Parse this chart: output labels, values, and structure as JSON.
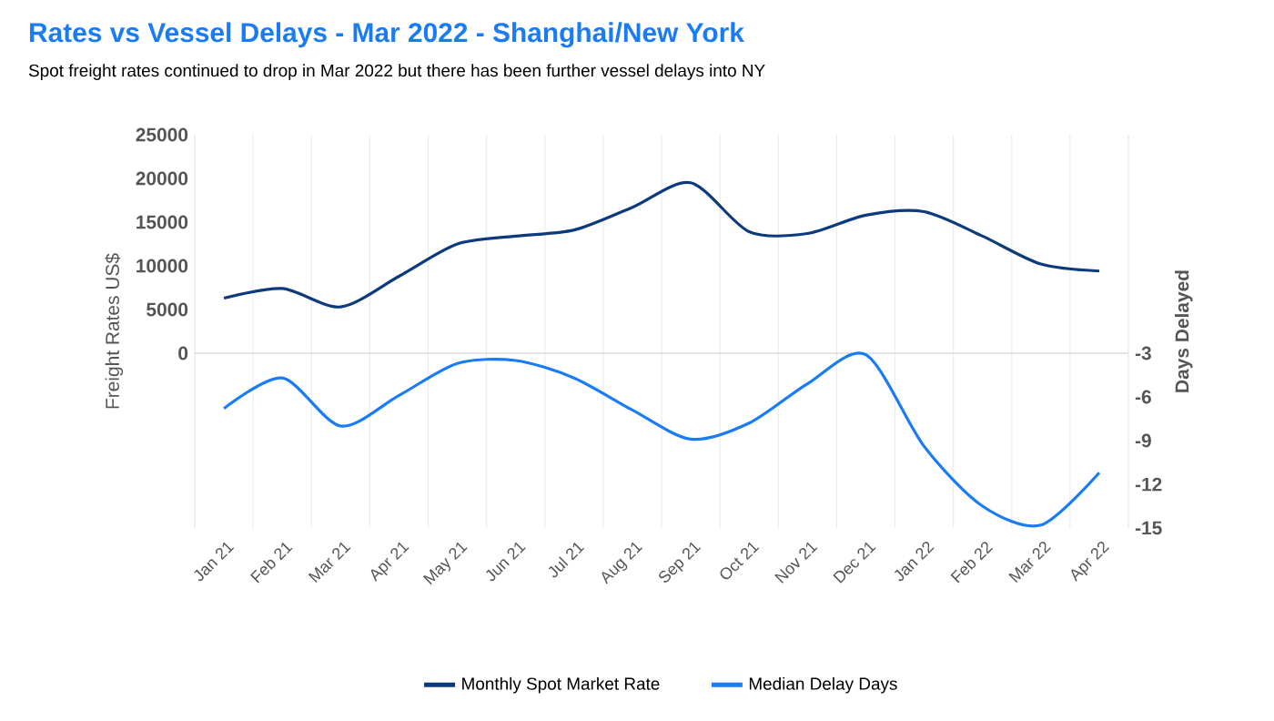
{
  "chart_data": {
    "type": "line",
    "title": "Rates vs Vessel Delays - Mar 2022 - Shanghai/New York",
    "subtitle": "Spot freight rates continued to drop in Mar 2022 but there has been further vessel delays into NY",
    "ylabel": "Freight Rates US$",
    "y2label": "Days Delayed",
    "categories": [
      "Jan 21",
      "Feb 21",
      "Mar 21",
      "Apr 21",
      "May 21",
      "Jun 21",
      "Jul 21",
      "Aug 21",
      "Sep 21",
      "Oct 21",
      "Nov 21",
      "Dec 21",
      "Jan 22",
      "Feb 22",
      "Mar 22",
      "Apr 22"
    ],
    "series": [
      {
        "name": "Monthly Spot Market Rate",
        "color": "#0c3a7d",
        "values": [
          6300,
          7400,
          5300,
          8800,
          12500,
          13400,
          14100,
          16700,
          19500,
          13900,
          13700,
          15800,
          16200,
          13400,
          10200,
          9400
        ]
      },
      {
        "name": "Median Delay Days",
        "color": "#1a7cf5",
        "axis": "y2",
        "values": [
          -6.8,
          -4.7,
          -8.0,
          -5.9,
          -3.7,
          -3.5,
          -4.7,
          -6.9,
          -8.9,
          -7.8,
          -5.1,
          -3.1,
          -9.4,
          -13.5,
          -14.8,
          -11.2
        ]
      }
    ],
    "ylim": [
      -20000,
      25000
    ],
    "yticks": [
      0,
      5000,
      10000,
      15000,
      20000,
      25000
    ],
    "y2lim": [
      -15,
      12
    ],
    "y2ticks": [
      -3,
      -6,
      -9,
      -12,
      -15
    ],
    "ref_lines": [
      {
        "axis": "y",
        "value": 0
      }
    ],
    "grid": "x",
    "legend": "bottom"
  }
}
